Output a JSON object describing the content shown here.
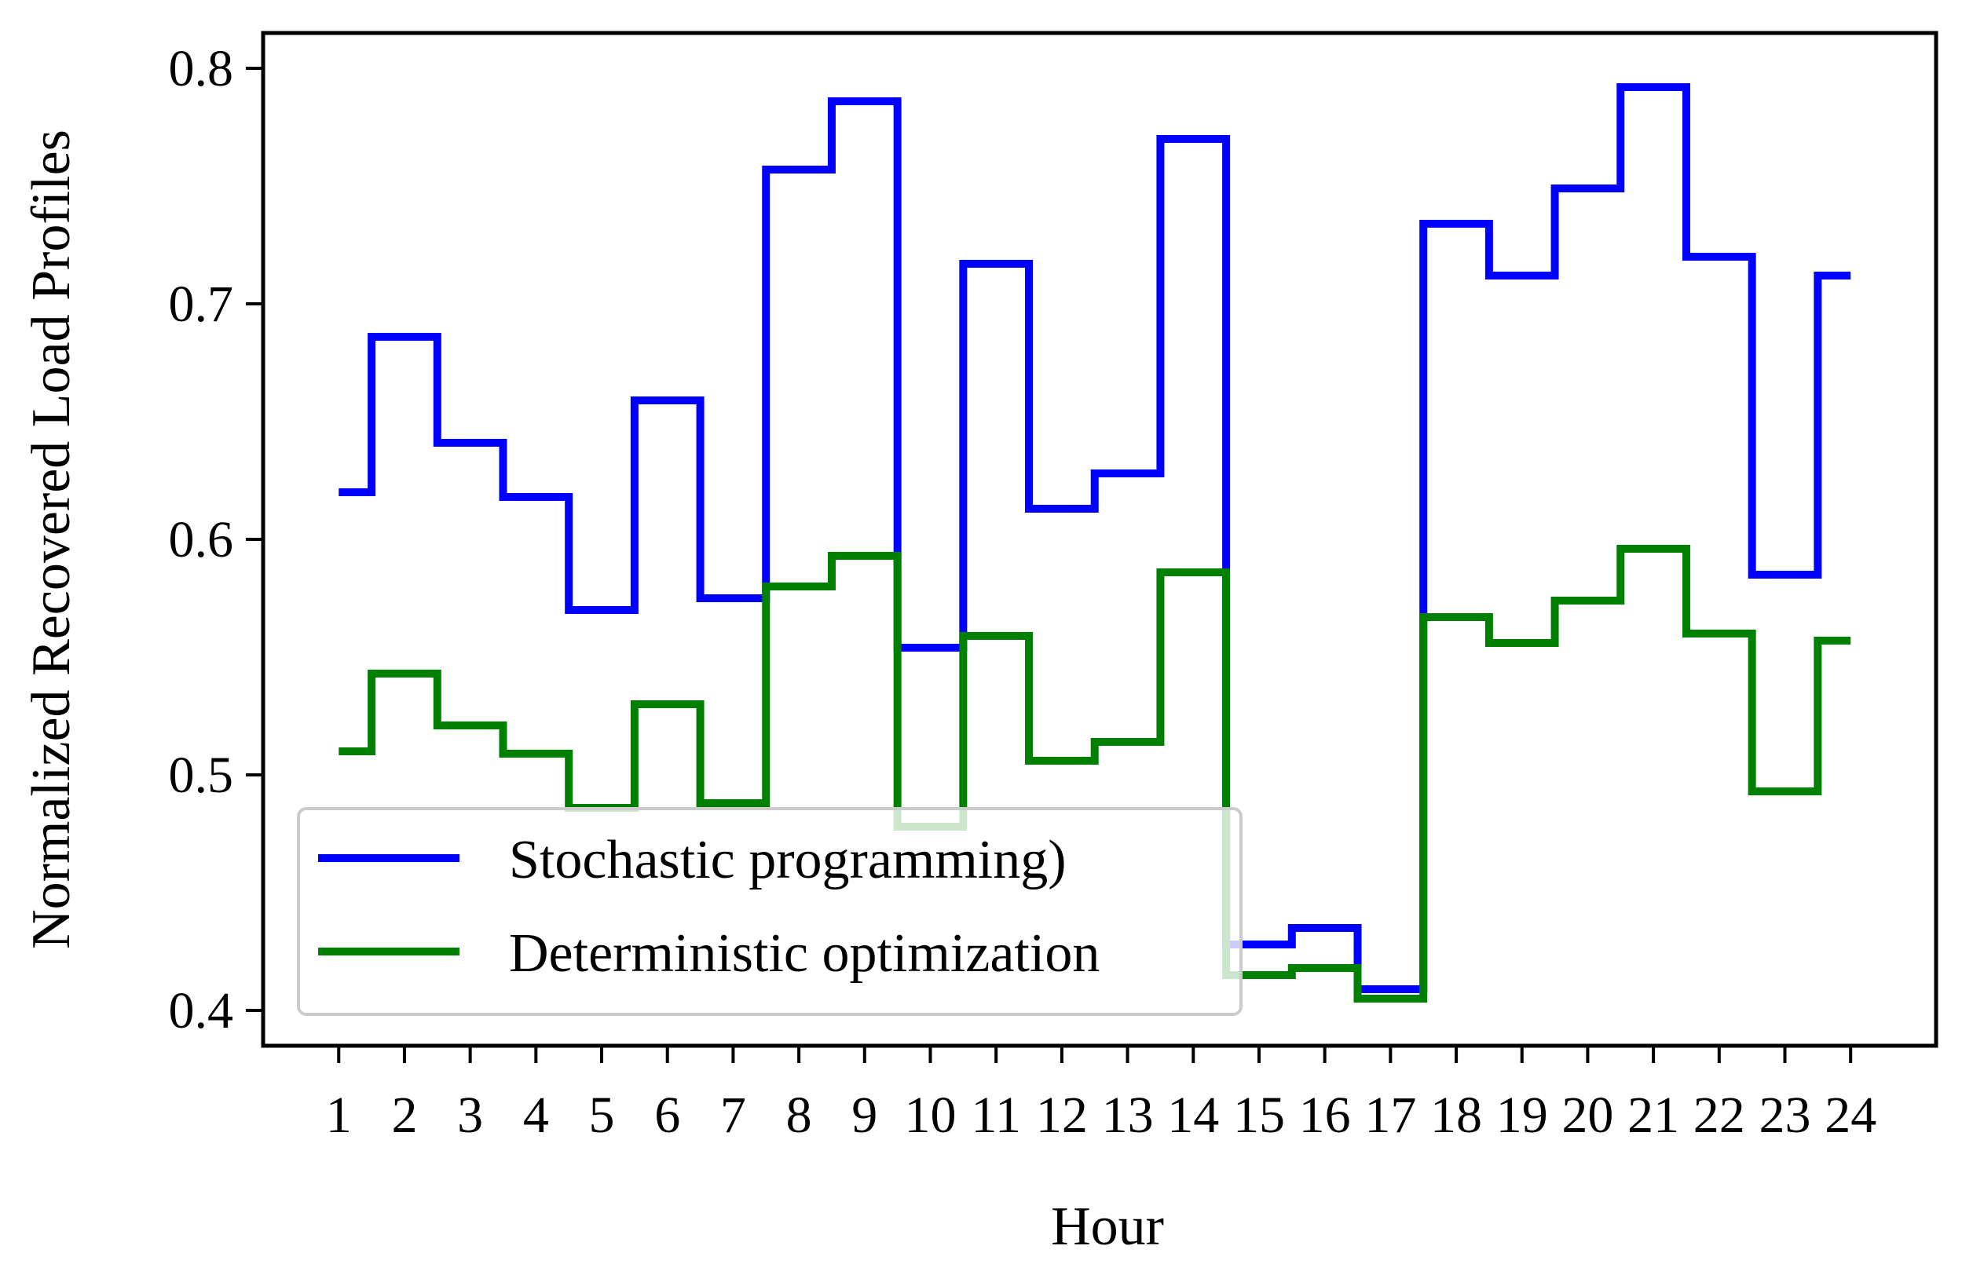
{
  "chart_data": {
    "type": "line",
    "step": "mid",
    "title": "",
    "xlabel": "Hour",
    "ylabel": "Normalized Recovered Load Profiles",
    "x": [
      1,
      2,
      3,
      4,
      5,
      6,
      7,
      8,
      9,
      10,
      11,
      12,
      13,
      14,
      15,
      16,
      17,
      18,
      19,
      20,
      21,
      22,
      23,
      24
    ],
    "x_tick_labels": [
      "1",
      "2",
      "3",
      "4",
      "5",
      "6",
      "7",
      "8",
      "9",
      "10",
      "11",
      "12",
      "13",
      "14",
      "15",
      "16",
      "17",
      "18",
      "19",
      "20",
      "21",
      "22",
      "23",
      "24"
    ],
    "xlim": [
      -0.15,
      25.3
    ],
    "ylim": [
      0.385,
      0.815
    ],
    "y_ticks": [
      0.4,
      0.5,
      0.6,
      0.7,
      0.8
    ],
    "y_tick_labels": [
      "0.4",
      "0.5",
      "0.6",
      "0.7",
      "0.8"
    ],
    "grid": false,
    "legend_position": "lower-left",
    "series": [
      {
        "name": "Stochastic programming)",
        "color": "#0000ff",
        "values": [
          0.62,
          0.686,
          0.641,
          0.618,
          0.57,
          0.659,
          0.575,
          0.757,
          0.786,
          0.554,
          0.717,
          0.613,
          0.628,
          0.77,
          0.428,
          0.435,
          0.409,
          0.734,
          0.712,
          0.749,
          0.792,
          0.72,
          0.585,
          0.712
        ]
      },
      {
        "name": "Deterministic optimization",
        "color": "#008000",
        "values": [
          0.51,
          0.543,
          0.521,
          0.509,
          0.486,
          0.53,
          0.488,
          0.58,
          0.593,
          0.478,
          0.559,
          0.506,
          0.514,
          0.586,
          0.415,
          0.418,
          0.405,
          0.567,
          0.556,
          0.574,
          0.596,
          0.56,
          0.493,
          0.557
        ]
      }
    ]
  }
}
